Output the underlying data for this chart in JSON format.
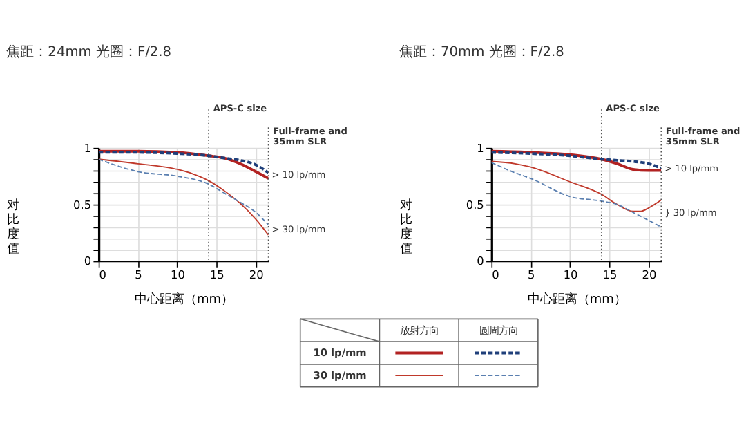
{
  "chart_data": [
    {
      "type": "line",
      "title": "焦距：24mm  光圈：F/2.8",
      "xlabel": "中心距离（mm）",
      "ylabel": "对比度值",
      "xlim": [
        0,
        21.6
      ],
      "xticks": [
        0,
        5,
        10,
        15,
        20
      ],
      "ylim": [
        0,
        1
      ],
      "yticks": [
        0,
        {
          "value": 0.1,
          "label": null
        },
        {
          "value": 0.2,
          "label": null
        },
        {
          "value": 0.3,
          "label": null
        },
        {
          "value": 0.4,
          "label": null
        },
        0.5,
        {
          "value": 0.6,
          "label": null
        },
        {
          "value": 0.7,
          "label": null
        },
        {
          "value": 0.8,
          "label": null
        },
        {
          "value": 0.9,
          "label": null
        },
        1
      ],
      "grid": true,
      "series": [
        {
          "color": "#b22222",
          "line_style": "solid",
          "x": [
            0,
            5,
            10,
            14,
            16,
            18,
            20,
            21.6
          ],
          "values": [
            0.97,
            0.97,
            0.96,
            0.93,
            0.91,
            0.86,
            0.79,
            0.73
          ]
        },
        {
          "color": "#1f3f7a",
          "line_style": "dashed",
          "x": [
            0,
            5,
            10,
            14,
            16,
            18,
            20,
            21.6
          ],
          "values": [
            0.96,
            0.96,
            0.95,
            0.93,
            0.91,
            0.89,
            0.85,
            0.78
          ]
        },
        {
          "color": "#c0392b",
          "line_style": "solid",
          "x": [
            0,
            5,
            10,
            12,
            14,
            16,
            18,
            20,
            21.6
          ],
          "values": [
            0.9,
            0.86,
            0.81,
            0.77,
            0.71,
            0.62,
            0.51,
            0.37,
            0.23
          ]
        },
        {
          "color": "#5a7fb0",
          "line_style": "dashed",
          "x": [
            0,
            2,
            5,
            10,
            14,
            16,
            18,
            20,
            21.6
          ],
          "values": [
            0.9,
            0.85,
            0.79,
            0.75,
            0.68,
            0.6,
            0.52,
            0.43,
            0.32
          ]
        }
      ],
      "ref_lines": [
        {
          "axis": "x",
          "value": 14,
          "label": "APS-C size",
          "line_style": "dotted"
        },
        {
          "axis": "x",
          "value": 21.6,
          "label": "Full-frame and\n35mm SLR",
          "line_style": "dotted"
        }
      ],
      "annotations": [
        "> 10 lp/mm",
        "> 30 lp/mm"
      ]
    },
    {
      "type": "line",
      "title": "焦距：70mm  光圈：F/2.8",
      "xlabel": "中心距离（mm）",
      "ylabel": "对比度值",
      "xlim": [
        0,
        21.6
      ],
      "xticks": [
        0,
        5,
        10,
        15,
        20
      ],
      "ylim": [
        0,
        1
      ],
      "yticks": [
        0,
        {
          "value": 0.1,
          "label": null
        },
        {
          "value": 0.2,
          "label": null
        },
        {
          "value": 0.3,
          "label": null
        },
        {
          "value": 0.4,
          "label": null
        },
        0.5,
        {
          "value": 0.6,
          "label": null
        },
        {
          "value": 0.7,
          "label": null
        },
        {
          "value": 0.8,
          "label": null
        },
        {
          "value": 0.9,
          "label": null
        },
        1
      ],
      "grid": true,
      "series": [
        {
          "color": "#b22222",
          "line_style": "solid",
          "x": [
            0,
            5,
            10,
            14,
            16,
            18,
            20,
            21.6
          ],
          "values": [
            0.97,
            0.96,
            0.94,
            0.9,
            0.86,
            0.81,
            0.8,
            0.8
          ]
        },
        {
          "color": "#1f3f7a",
          "line_style": "dashed",
          "x": [
            0,
            5,
            10,
            14,
            16,
            18,
            20,
            21.6
          ],
          "values": [
            0.96,
            0.95,
            0.93,
            0.9,
            0.89,
            0.88,
            0.86,
            0.82
          ]
        },
        {
          "color": "#c0392b",
          "line_style": "solid",
          "x": [
            0,
            3,
            5,
            10,
            14,
            16,
            18,
            19,
            20,
            21.6
          ],
          "values": [
            0.88,
            0.86,
            0.83,
            0.7,
            0.59,
            0.5,
            0.44,
            0.44,
            0.47,
            0.54
          ]
        },
        {
          "color": "#5a7fb0",
          "line_style": "dashed",
          "x": [
            0,
            3,
            5,
            10,
            14,
            16,
            18,
            20,
            21.6
          ],
          "values": [
            0.87,
            0.78,
            0.73,
            0.57,
            0.53,
            0.5,
            0.43,
            0.36,
            0.3
          ]
        }
      ],
      "ref_lines": [
        {
          "axis": "x",
          "value": 14,
          "label": "APS-C size",
          "line_style": "dotted"
        },
        {
          "axis": "x",
          "value": 21.6,
          "label": "Full-frame and\n35mm SLR",
          "line_style": "dotted"
        }
      ],
      "annotations": [
        "> 10 lp/mm",
        "} 30 lp/mm"
      ]
    },
    {
      "type": "other",
      "annotations": [
        "放射方向",
        "圆周方向",
        "10 lp/mm",
        "30 lp/mm"
      ]
    }
  ]
}
